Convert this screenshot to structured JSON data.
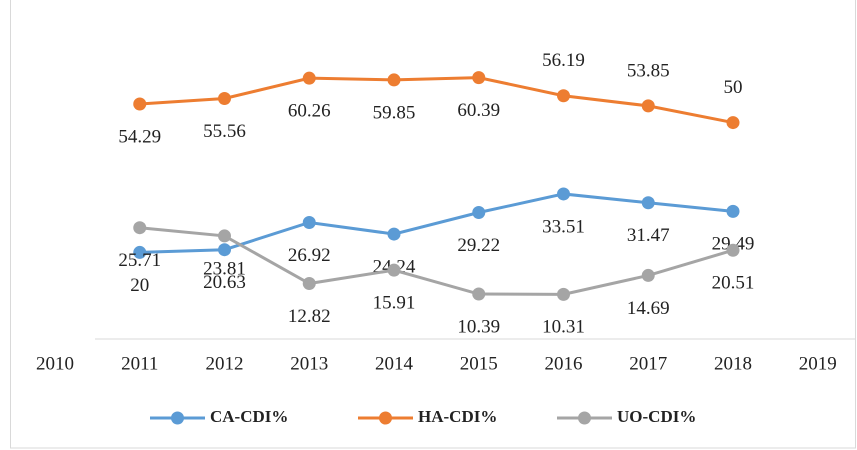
{
  "chart_data": {
    "type": "line",
    "categories": [
      "2010",
      "2011",
      "2012",
      "2013",
      "2014",
      "2015",
      "2016",
      "2017",
      "2018",
      "2019"
    ],
    "series": [
      {
        "name": "CA-CDI%",
        "color": "#5b9bd5",
        "values": [
          null,
          20,
          20.63,
          26.92,
          24.24,
          29.22,
          33.51,
          31.47,
          29.49,
          null
        ]
      },
      {
        "name": "HA-CDI%",
        "color": "#ed7d31",
        "values": [
          null,
          54.29,
          55.56,
          60.26,
          59.85,
          60.39,
          56.19,
          53.85,
          50,
          null
        ]
      },
      {
        "name": "UO-CDI%",
        "color": "#a5a5a5",
        "values": [
          null,
          25.71,
          23.81,
          12.82,
          15.91,
          10.39,
          10.31,
          14.69,
          20.51,
          null
        ]
      }
    ],
    "ylim": [
      0,
      70
    ],
    "legend": "bottom"
  }
}
